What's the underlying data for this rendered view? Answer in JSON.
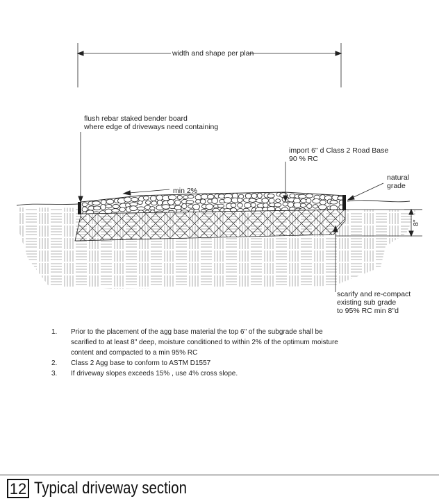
{
  "labels": {
    "width": "width and shape per plan",
    "bender_line1": "flush  rebar staked bender board",
    "bender_line2": "where edge of driveways need containing",
    "slope": "min 2%",
    "import_line1": "import 6\" d Class 2 Road Base",
    "import_line2": "90 % RC",
    "natural_line1": "natural",
    "natural_line2": "grade",
    "depth": "8\"",
    "scarify_line1": "scarify and re-compact",
    "scarify_line2": "existing sub grade",
    "scarify_line3": "to 95% RC min 8\"d"
  },
  "notes": [
    {
      "num": "1.",
      "text": "Prior to the placement of the agg base material the top 6\" of the subgrade shall be scarified to at least 8\" deep, moisture conditioned to within 2% of the optimum moisture content and compacted to a min 95% RC"
    },
    {
      "num": "2.",
      "text": "Class 2 Agg base to conform to ASTM D1557"
    },
    {
      "num": "3.",
      "text": "If driveway slopes exceeds 15% , use 4% cross slope."
    }
  ],
  "title": {
    "number": "12",
    "text": "Typical driveway section"
  }
}
